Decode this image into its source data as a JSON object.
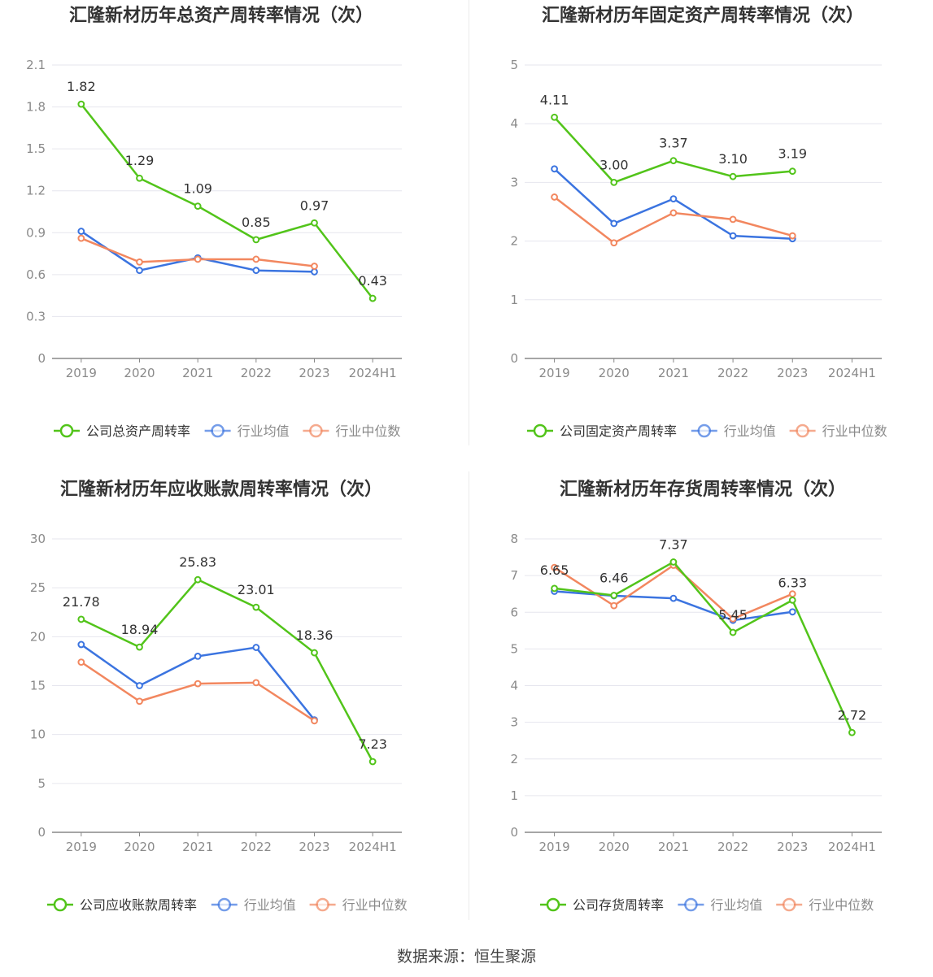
{
  "source_text": "数据来源：恒生聚源",
  "colors": {
    "company": "#52c41a",
    "industry_avg": "#3b74e0",
    "industry_median": "#f2875f",
    "axis": "#888888",
    "grid": "#e6e6ee",
    "tick_label": "#8a8a8a",
    "title": "#333333",
    "data_label": "#333333",
    "legend_text": "#666666"
  },
  "chart_data": [
    {
      "type": "line",
      "title": "汇隆新材历年总资产周转率情况（次）",
      "categories": [
        "2019",
        "2020",
        "2021",
        "2022",
        "2023",
        "2024H1"
      ],
      "ylim": [
        0,
        2.1
      ],
      "yticks": [
        "0",
        "0.3",
        "0.6",
        "0.9",
        "1.2",
        "1.5",
        "1.8",
        "2.1"
      ],
      "grid": true,
      "legend_position": "bottom",
      "series": [
        {
          "name": "公司总资产周转率",
          "role": "company",
          "values": [
            1.82,
            1.29,
            1.09,
            0.85,
            0.97,
            0.43
          ],
          "labels": [
            "1.82",
            "1.29",
            "1.09",
            "0.85",
            "0.97",
            "0.43"
          ]
        },
        {
          "name": "行业均值",
          "role": "industry_avg",
          "values": [
            0.91,
            0.63,
            0.72,
            0.63,
            0.62,
            null
          ]
        },
        {
          "name": "行业中位数",
          "role": "industry_median",
          "values": [
            0.86,
            0.69,
            0.71,
            0.71,
            0.66,
            null
          ]
        }
      ]
    },
    {
      "type": "line",
      "title": "汇隆新材历年固定资产周转率情况（次）",
      "categories": [
        "2019",
        "2020",
        "2021",
        "2022",
        "2023",
        "2024H1"
      ],
      "ylim": [
        0,
        5
      ],
      "yticks": [
        "0",
        "1",
        "2",
        "3",
        "4",
        "5"
      ],
      "grid": true,
      "legend_position": "bottom",
      "series": [
        {
          "name": "公司固定资产周转率",
          "role": "company",
          "values": [
            4.11,
            3.0,
            3.37,
            3.1,
            3.19,
            null
          ],
          "labels": [
            "4.11",
            "3.00",
            "3.37",
            "3.10",
            "3.19",
            ""
          ]
        },
        {
          "name": "行业均值",
          "role": "industry_avg",
          "values": [
            3.23,
            2.3,
            2.72,
            2.09,
            2.04,
            null
          ]
        },
        {
          "name": "行业中位数",
          "role": "industry_median",
          "values": [
            2.75,
            1.97,
            2.48,
            2.37,
            2.09,
            null
          ]
        }
      ]
    },
    {
      "type": "line",
      "title": "汇隆新材历年应收账款周转率情况（次）",
      "categories": [
        "2019",
        "2020",
        "2021",
        "2022",
        "2023",
        "2024H1"
      ],
      "ylim": [
        0,
        30
      ],
      "yticks": [
        "0",
        "5",
        "10",
        "15",
        "20",
        "25",
        "30"
      ],
      "grid": true,
      "legend_position": "bottom",
      "series": [
        {
          "name": "公司应收账款周转率",
          "role": "company",
          "values": [
            21.78,
            18.94,
            25.83,
            23.01,
            18.36,
            7.23
          ],
          "labels": [
            "21.78",
            "18.94",
            "25.83",
            "23.01",
            "18.36",
            "7.23"
          ]
        },
        {
          "name": "行业均值",
          "role": "industry_avg",
          "values": [
            19.2,
            15.0,
            18.0,
            18.9,
            11.5,
            null
          ]
        },
        {
          "name": "行业中位数",
          "role": "industry_median",
          "values": [
            17.4,
            13.4,
            15.2,
            15.3,
            11.4,
            null
          ]
        }
      ]
    },
    {
      "type": "line",
      "title": "汇隆新材历年存货周转率情况（次）",
      "categories": [
        "2019",
        "2020",
        "2021",
        "2022",
        "2023",
        "2024H1"
      ],
      "ylim": [
        0,
        8
      ],
      "yticks": [
        "0",
        "1",
        "2",
        "3",
        "4",
        "5",
        "6",
        "7",
        "8"
      ],
      "grid": true,
      "legend_position": "bottom",
      "series": [
        {
          "name": "公司存货周转率",
          "role": "company",
          "values": [
            6.65,
            6.46,
            7.37,
            5.45,
            6.33,
            2.72
          ],
          "labels": [
            "6.65",
            "6.46",
            "7.37",
            "5.45",
            "6.33",
            "2.72"
          ]
        },
        {
          "name": "行业均值",
          "role": "industry_avg",
          "values": [
            6.57,
            6.45,
            6.38,
            5.78,
            6.01,
            null
          ]
        },
        {
          "name": "行业中位数",
          "role": "industry_median",
          "values": [
            7.22,
            6.18,
            7.28,
            5.82,
            6.5,
            null
          ]
        }
      ]
    }
  ]
}
